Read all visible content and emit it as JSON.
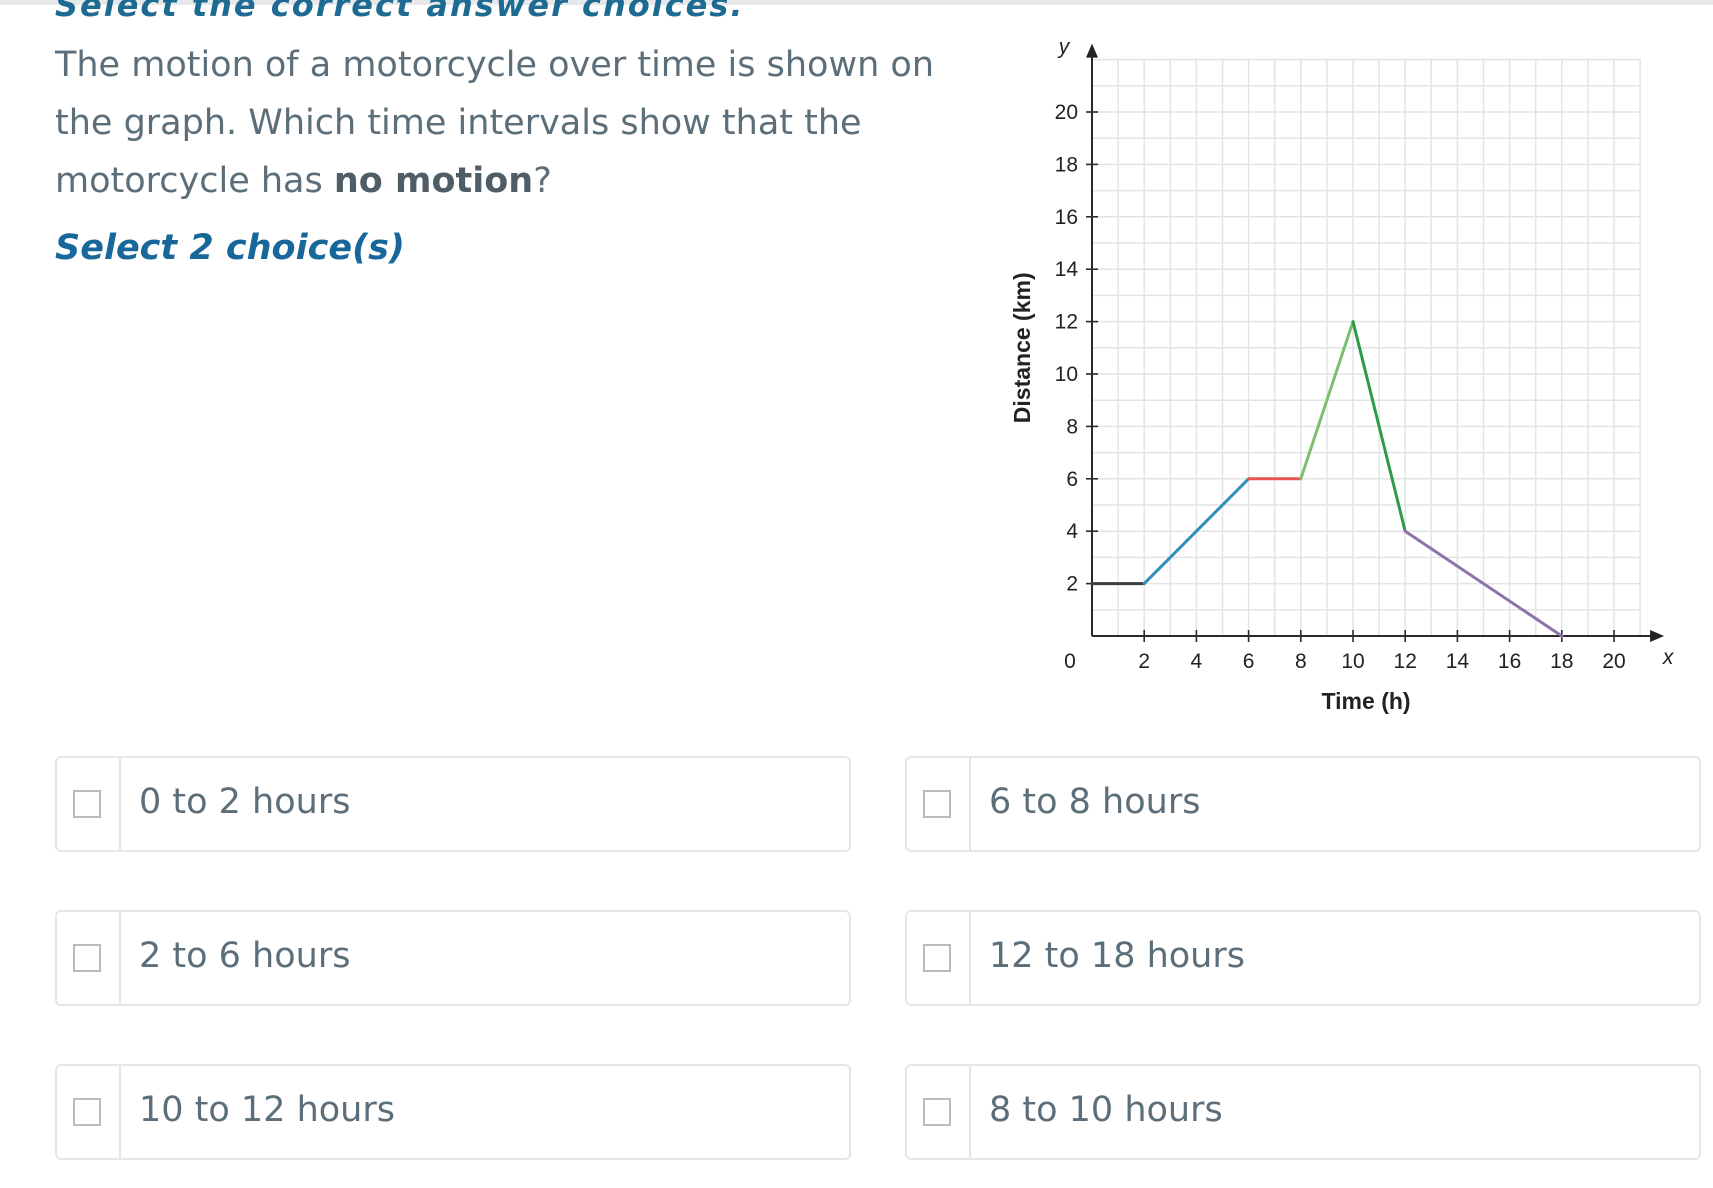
{
  "instruction": "Select the correct answer choices.",
  "question": {
    "part1": "The motion of a motorcycle over time is shown on the graph. Which time intervals show that the motorcycle has ",
    "bold": "no motion",
    "part2": "?"
  },
  "select_count": "Select 2 choice(s)",
  "choices": [
    {
      "label": "0 to 2 hours"
    },
    {
      "label": "6 to 8 hours"
    },
    {
      "label": "2 to 6 hours"
    },
    {
      "label": "12 to 18 hours"
    },
    {
      "label": "10 to 12 hours"
    },
    {
      "label": "8 to 10 hours"
    }
  ],
  "chart_data": {
    "type": "line",
    "xlabel": "Time (h)",
    "ylabel": "Distance (km)",
    "x_var": "x",
    "y_var": "y",
    "xlim": [
      0,
      21
    ],
    "ylim": [
      0,
      22
    ],
    "x_ticks": [
      2,
      4,
      6,
      8,
      10,
      12,
      14,
      16,
      18,
      20
    ],
    "y_ticks": [
      2,
      4,
      6,
      8,
      10,
      12,
      14,
      16,
      18,
      20
    ],
    "origin_label": "0",
    "grid": true,
    "segments": [
      {
        "points": [
          [
            0,
            2
          ],
          [
            2,
            2
          ]
        ],
        "color": "#3c3c3c"
      },
      {
        "points": [
          [
            2,
            2
          ],
          [
            6,
            6
          ]
        ],
        "color": "#2f8fbf"
      },
      {
        "points": [
          [
            6,
            6
          ],
          [
            8,
            6
          ]
        ],
        "color": "#e8544e"
      },
      {
        "points": [
          [
            8,
            6
          ],
          [
            10,
            12
          ]
        ],
        "color": "#7cbf6e"
      },
      {
        "points": [
          [
            10,
            12
          ],
          [
            12,
            4
          ]
        ],
        "color": "#2e9a4c"
      },
      {
        "points": [
          [
            12,
            4
          ],
          [
            18,
            0
          ]
        ],
        "color": "#8e73a8"
      }
    ]
  }
}
